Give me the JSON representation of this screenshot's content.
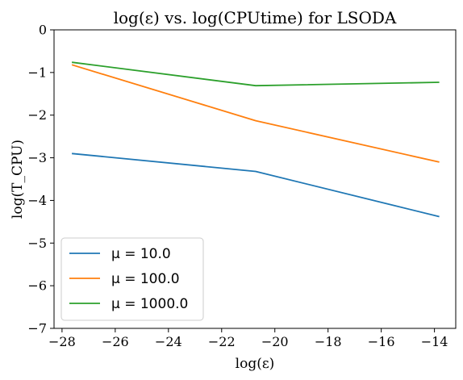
{
  "chart_data": {
    "type": "line",
    "title": "log(ε) vs. log(CPUtime) for LSODA",
    "xlabel": "log(ε)",
    "ylabel": "log(T_CPU)",
    "xlim": [
      -28.3,
      -13.2
    ],
    "ylim": [
      -7,
      0
    ],
    "xticks": [
      -28,
      -26,
      -24,
      -22,
      -20,
      -18,
      -16,
      -14
    ],
    "yticks": [
      -7,
      -6,
      -5,
      -4,
      -3,
      -2,
      -1,
      0
    ],
    "xtick_labels": [
      "−28",
      "−26",
      "−24",
      "−22",
      "−20",
      "−18",
      "−16",
      "−14"
    ],
    "ytick_labels": [
      "−7",
      "−6",
      "−5",
      "−4",
      "−3",
      "−2",
      "−1",
      "0"
    ],
    "grid": false,
    "legend_position": "lower-left",
    "series": [
      {
        "name": "μ = 10.0",
        "color": "#1f77b4",
        "x": [
          -27.63,
          -20.72,
          -13.82
        ],
        "y": [
          -2.9,
          -3.32,
          -4.38
        ]
      },
      {
        "name": "μ = 100.0",
        "color": "#ff7f0e",
        "x": [
          -27.63,
          -20.72,
          -13.82
        ],
        "y": [
          -0.82,
          -2.13,
          -3.1
        ]
      },
      {
        "name": "μ = 1000.0",
        "color": "#2ca02c",
        "x": [
          -27.63,
          -20.72,
          -13.82
        ],
        "y": [
          -0.76,
          -1.31,
          -1.23
        ]
      }
    ]
  }
}
